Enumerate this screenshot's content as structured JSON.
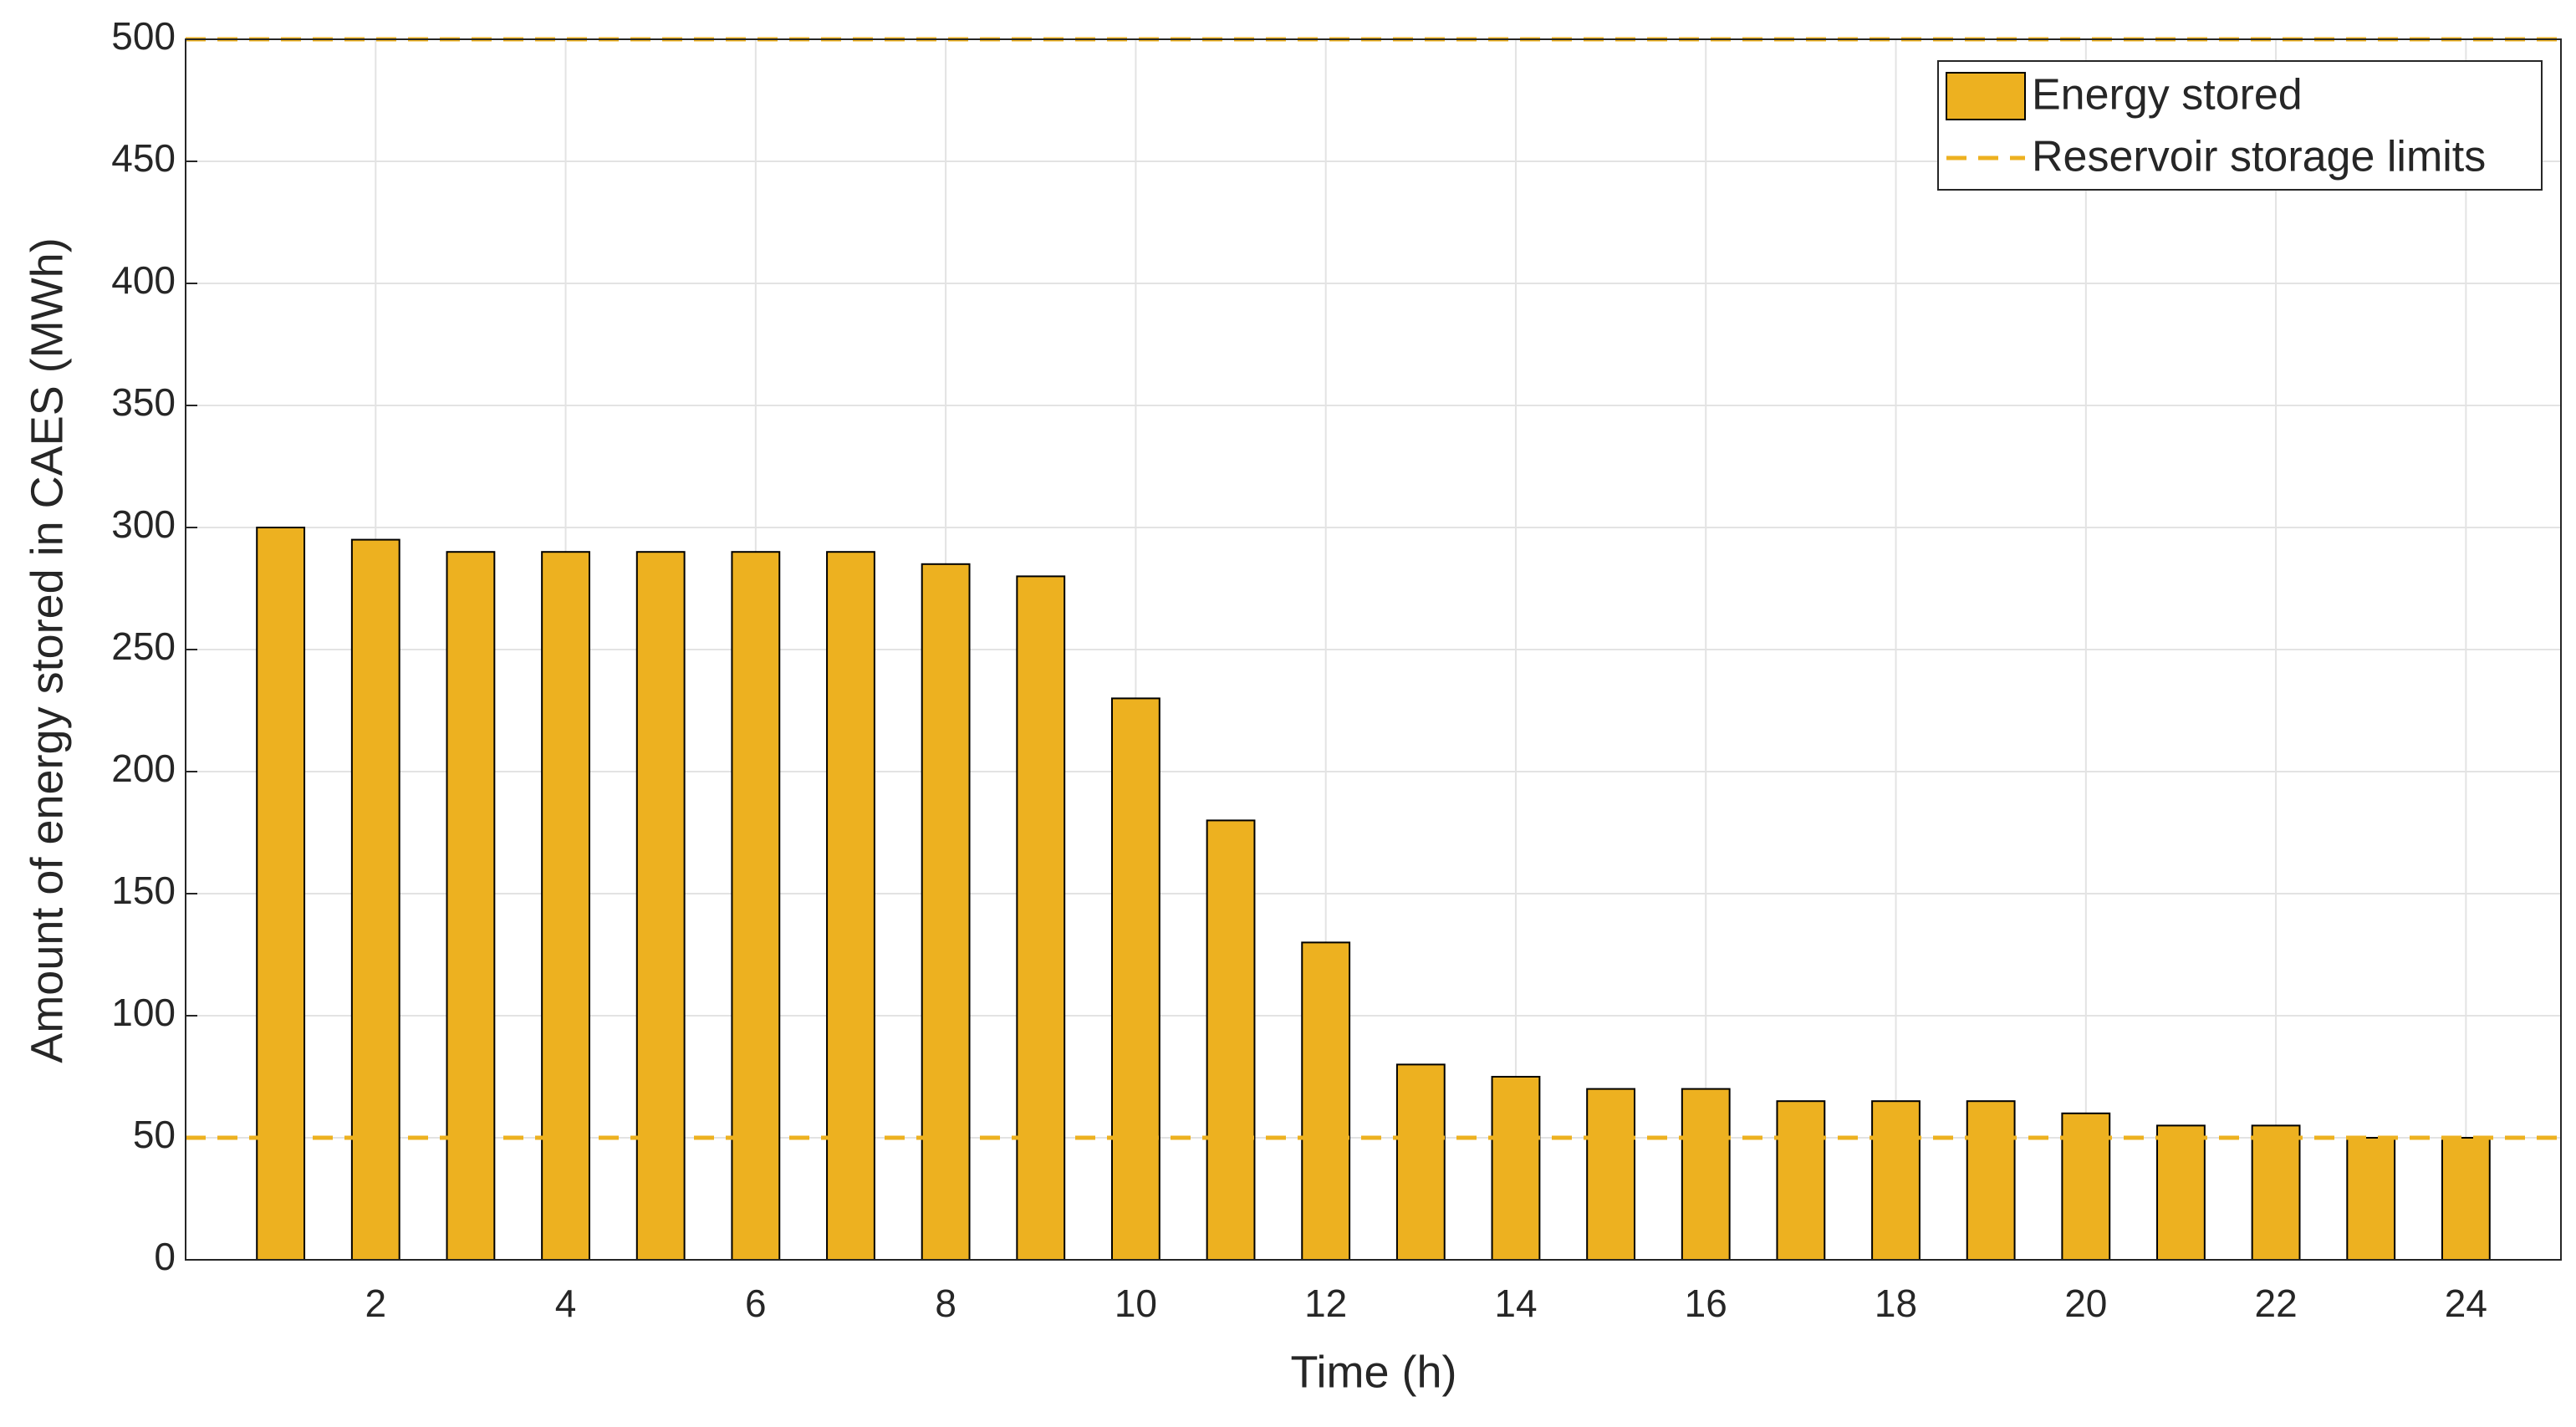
{
  "chart_data": {
    "type": "bar",
    "x": [
      1,
      2,
      3,
      4,
      5,
      6,
      7,
      8,
      9,
      10,
      11,
      12,
      13,
      14,
      15,
      16,
      17,
      18,
      19,
      20,
      21,
      22,
      23,
      24
    ],
    "series": [
      {
        "name": "Energy stored",
        "color": "#edb120",
        "values": [
          300,
          295,
          290,
          290,
          290,
          290,
          290,
          285,
          280,
          230,
          180,
          130,
          80,
          75,
          70,
          70,
          65,
          65,
          65,
          60,
          55,
          55,
          50,
          50
        ]
      }
    ],
    "limits": {
      "name": "Reservoir storage limits",
      "color": "#edb120",
      "values": [
        50,
        500
      ]
    },
    "xlabel": "Time (h)",
    "ylabel": "Amount of energy stored in CAES (MWh)",
    "xlim": [
      0,
      25
    ],
    "xticks": [
      2,
      4,
      6,
      8,
      10,
      12,
      14,
      16,
      18,
      20,
      22,
      24
    ],
    "ylim": [
      0,
      500
    ],
    "yticks": [
      0,
      50,
      100,
      150,
      200,
      250,
      300,
      350,
      400,
      450,
      500
    ],
    "grid": true,
    "legend": "upper right"
  }
}
